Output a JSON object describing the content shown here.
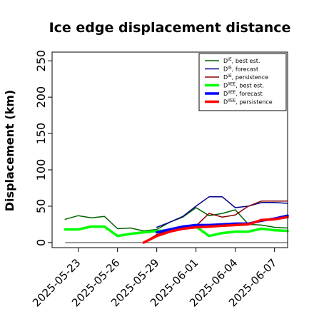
{
  "chart_data": {
    "type": "line",
    "title": "Ice edge displacement distance",
    "xlabel": "",
    "ylabel": "Displacement (km)",
    "ylim": [
      -7,
      262
    ],
    "yticks": [
      0,
      50,
      100,
      150,
      200,
      250
    ],
    "x_domain": [
      "2025-05-21",
      "2025-06-08"
    ],
    "xticks": [
      {
        "label": "2025-05-23",
        "color": "#000000"
      },
      {
        "label": "2025-05-26",
        "color": "#000000"
      },
      {
        "label": "2025-05-29",
        "color": "#228B22"
      },
      {
        "label": "2025-06-01",
        "color": "#000000"
      },
      {
        "label": "2025-06-04",
        "color": "#000000"
      },
      {
        "label": "2025-06-07",
        "color": "#000000"
      }
    ],
    "legend_position": "top-right",
    "zero_line": {
      "y": 0,
      "from": "2025-05-22",
      "to": "2025-06-08",
      "color": "#808080"
    },
    "series": [
      {
        "name": "D^IE, best est.",
        "legend_main": "D",
        "legend_sup": "IE",
        "legend_rest": ", best est.",
        "color": "#006400",
        "width": 1.5,
        "x": [
          "2025-05-22",
          "2025-05-23",
          "2025-05-24",
          "2025-05-25",
          "2025-05-26",
          "2025-05-27",
          "2025-05-28",
          "2025-05-29",
          "2025-05-30",
          "2025-05-31",
          "2025-06-01",
          "2025-06-02",
          "2025-06-03",
          "2025-06-04",
          "2025-06-05",
          "2025-06-06",
          "2025-06-07",
          "2025-06-08"
        ],
        "y": [
          32,
          37,
          34,
          36,
          19,
          20,
          16,
          18,
          28,
          35,
          48,
          37,
          40,
          45,
          25,
          24,
          21,
          20
        ]
      },
      {
        "name": "D^IE, forecast",
        "legend_main": "D",
        "legend_sup": "IE",
        "legend_rest": ", forecast",
        "color": "#00008B",
        "width": 1.5,
        "x": [
          "2025-05-29",
          "2025-05-30",
          "2025-05-31",
          "2025-06-01",
          "2025-06-02",
          "2025-06-03",
          "2025-06-04",
          "2025-06-05",
          "2025-06-06",
          "2025-06-07",
          "2025-06-08"
        ],
        "y": [
          21,
          28,
          36,
          50,
          63,
          63,
          48,
          50,
          55,
          55,
          54
        ]
      },
      {
        "name": "D^IE, persistence",
        "legend_main": "D",
        "legend_sup": "IE",
        "legend_rest": ", persistence",
        "color": "#8B0000",
        "width": 1.5,
        "x": [
          "2025-05-28",
          "2025-05-29",
          "2025-05-30",
          "2025-05-31",
          "2025-06-01",
          "2025-06-02",
          "2025-06-03",
          "2025-06-04",
          "2025-06-05",
          "2025-06-06",
          "2025-06-07",
          "2025-06-08"
        ],
        "y": [
          0,
          11,
          17,
          21,
          23,
          40,
          35,
          38,
          50,
          57,
          57,
          57
        ]
      },
      {
        "name": "D^IIEE, best est.",
        "legend_main": "D",
        "legend_sup": "IIEE",
        "legend_rest": ", best est.",
        "color": "#00FF00",
        "width": 3.5,
        "x": [
          "2025-05-22",
          "2025-05-23",
          "2025-05-24",
          "2025-05-25",
          "2025-05-26",
          "2025-05-27",
          "2025-05-28",
          "2025-05-29",
          "2025-05-30",
          "2025-05-31",
          "2025-06-01",
          "2025-06-02",
          "2025-06-03",
          "2025-06-04",
          "2025-06-05",
          "2025-06-06",
          "2025-06-07",
          "2025-06-08"
        ],
        "y": [
          18,
          18,
          22,
          22,
          9,
          12,
          14,
          16,
          17,
          20,
          22,
          9,
          13,
          15,
          15,
          19,
          17,
          16
        ]
      },
      {
        "name": "D^IIEE, forecast",
        "legend_main": "D",
        "legend_sup": "IIEE",
        "legend_rest": ", forecast",
        "color": "#0000FF",
        "width": 3.5,
        "x": [
          "2025-05-29",
          "2025-05-30",
          "2025-05-31",
          "2025-06-01",
          "2025-06-02",
          "2025-06-03",
          "2025-06-04",
          "2025-06-05",
          "2025-06-06",
          "2025-06-07",
          "2025-06-08"
        ],
        "y": [
          14,
          18,
          22,
          24,
          24,
          25,
          26,
          26,
          30,
          33,
          37
        ]
      },
      {
        "name": "D^IIEE, persistence",
        "legend_main": "D",
        "legend_sup": "IIEE",
        "legend_rest": ", persistence",
        "color": "#FF0000",
        "width": 3.5,
        "x": [
          "2025-05-28",
          "2025-05-29",
          "2025-05-30",
          "2025-05-31",
          "2025-06-01",
          "2025-06-02",
          "2025-06-03",
          "2025-06-04",
          "2025-06-05",
          "2025-06-06",
          "2025-06-07",
          "2025-06-08"
        ],
        "y": [
          0,
          9,
          15,
          19,
          21,
          22,
          23,
          24,
          25,
          31,
          32,
          35
        ]
      }
    ]
  }
}
